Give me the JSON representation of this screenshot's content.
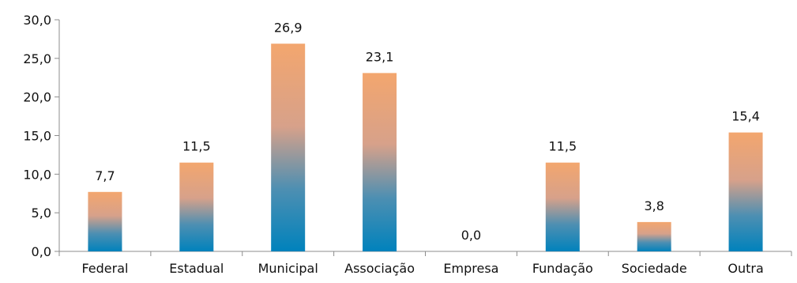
{
  "chart_data": {
    "type": "bar",
    "categories": [
      "Federal",
      "Estadual",
      "Municipal",
      "Associação",
      "Empresa",
      "Fundação",
      "Sociedade",
      "Outra"
    ],
    "values": [
      7.7,
      11.5,
      26.9,
      23.1,
      0.0,
      11.5,
      3.8,
      15.4
    ],
    "value_labels": [
      "7,7",
      "11,5",
      "26,9",
      "23,1",
      "0,0",
      "11,5",
      "3,8",
      "15,4"
    ],
    "y_ticks": [
      0,
      5,
      10,
      15,
      20,
      25,
      30
    ],
    "y_tick_labels": [
      "0,0",
      "5,0",
      "10,0",
      "15,0",
      "20,0",
      "25,0",
      "30,0"
    ],
    "ylim": [
      0,
      30
    ],
    "grid": false,
    "legend": "none",
    "title": "",
    "xlabel": "",
    "ylabel": "",
    "colors": {
      "bar_top": "#f3a66e",
      "bar_mid": "#4d8fb2",
      "bar_bottom": "#0082bc",
      "axis": "#8c8c8c"
    }
  }
}
